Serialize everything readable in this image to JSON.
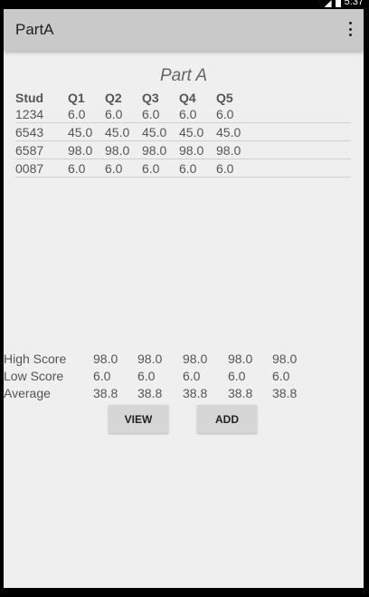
{
  "status": {
    "time": "5:37"
  },
  "appbar": {
    "title": "PartA"
  },
  "page_title": "Part A",
  "table": {
    "headers": [
      "Stud",
      "Q1",
      "Q2",
      "Q3",
      "Q4",
      "Q5"
    ],
    "rows": [
      [
        "1234",
        "6.0",
        "6.0",
        "6.0",
        "6.0",
        "6.0"
      ],
      [
        "6543",
        "45.0",
        "45.0",
        "45.0",
        "45.0",
        "45.0"
      ],
      [
        "6587",
        "98.0",
        "98.0",
        "98.0",
        "98.0",
        "98.0"
      ],
      [
        "0087",
        "6.0",
        "6.0",
        "6.0",
        "6.0",
        "6.0"
      ]
    ]
  },
  "stats": [
    {
      "label": "High Score",
      "values": [
        "98.0",
        "98.0",
        "98.0",
        "98.0",
        "98.0"
      ]
    },
    {
      "label": "Low Score",
      "values": [
        "6.0",
        "6.0",
        "6.0",
        "6.0",
        "6.0"
      ]
    },
    {
      "label": "Average",
      "values": [
        "38.8",
        "38.8",
        "38.8",
        "38.8",
        "38.8"
      ]
    }
  ],
  "buttons": {
    "view": "VIEW",
    "add": "ADD"
  }
}
